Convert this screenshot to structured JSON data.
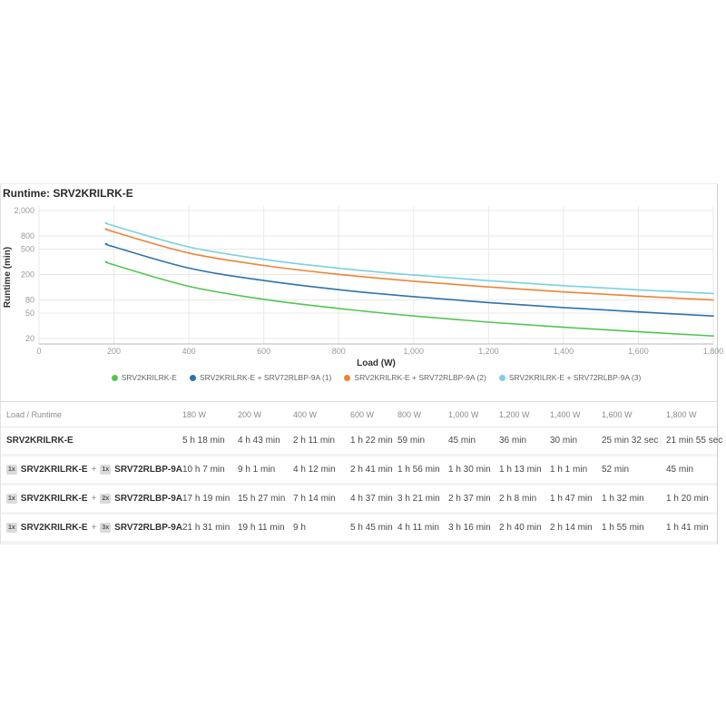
{
  "title": "Runtime: SRV2KRILRK-E",
  "chart_data": {
    "type": "line",
    "title": "Runtime: SRV2KRILRK-E",
    "xlabel": "Load (W)",
    "ylabel": "Runtime (min)",
    "x_ticks": [
      0,
      200,
      400,
      600,
      800,
      1000,
      1200,
      1400,
      1600,
      1800
    ],
    "y_ticks": [
      20,
      50,
      80,
      200,
      500,
      800,
      2000
    ],
    "x_range": [
      0,
      1800
    ],
    "y_scale": "log",
    "grid": true,
    "legend_position": "bottom",
    "x": [
      180,
      200,
      400,
      600,
      800,
      1000,
      1200,
      1400,
      1600,
      1800
    ],
    "series": [
      {
        "name": "SRV2KRILRK-E",
        "color": "#53c553",
        "runtime_min": [
          318,
          283,
          131,
          82,
          59,
          45,
          36,
          30,
          25.5,
          21.9
        ]
      },
      {
        "name": "SRV2KRILRK-E + SRV72RLBP-9A (1)",
        "color": "#2e72ad",
        "runtime_min": [
          607,
          541,
          252,
          161,
          116,
          90,
          73,
          61,
          52,
          45
        ]
      },
      {
        "name": "SRV2KRILRK-E + SRV72RLBP-9A (2)",
        "color": "#ee8435",
        "runtime_min": [
          1039,
          927,
          434,
          277,
          201,
          157,
          128,
          107,
          92,
          80
        ]
      },
      {
        "name": "SRV2KRILRK-E + SRV72RLBP-9A (3)",
        "color": "#7bd0e2",
        "runtime_min": [
          1291,
          1151,
          540,
          345,
          251,
          196,
          160,
          134,
          115,
          101
        ]
      }
    ]
  },
  "table": {
    "corner_header": "Load / Runtime",
    "load_headers": [
      "180 W",
      "200 W",
      "400 W",
      "600 W",
      "800 W",
      "1,000 W",
      "1,200 W",
      "1,400 W",
      "1,600 W",
      "1,800 W"
    ],
    "rows": [
      {
        "label_parts": [
          {
            "badge": null,
            "text": "SRV2KRILRK-E"
          }
        ],
        "cells": [
          "5 h 18 min",
          "4 h 43 min",
          "2 h 11 min",
          "1 h 22 min",
          "59 min",
          "45 min",
          "36 min",
          "30 min",
          "25 min 32 sec",
          "21 min 55 sec"
        ]
      },
      {
        "label_parts": [
          {
            "badge": "1x",
            "text": "SRV2KRILRK-E"
          },
          {
            "badge": "1x",
            "text": "SRV72RLBP-9A"
          }
        ],
        "cells": [
          "10 h 7 min",
          "9 h 1 min",
          "4 h 12 min",
          "2 h 41 min",
          "1 h 56 min",
          "1 h 30 min",
          "1 h 13 min",
          "1 h 1 min",
          "52 min",
          "45 min"
        ]
      },
      {
        "label_parts": [
          {
            "badge": "1x",
            "text": "SRV2KRILRK-E"
          },
          {
            "badge": "2x",
            "text": "SRV72RLBP-9A"
          }
        ],
        "cells": [
          "17 h 19 min",
          "15 h 27 min",
          "7 h 14 min",
          "4 h 37 min",
          "3 h 21 min",
          "2 h 37 min",
          "2 h 8 min",
          "1 h 47 min",
          "1 h 32 min",
          "1 h 20 min"
        ]
      },
      {
        "label_parts": [
          {
            "badge": "1x",
            "text": "SRV2KRILRK-E"
          },
          {
            "badge": "3x",
            "text": "SRV72RLBP-9A"
          }
        ],
        "cells": [
          "21 h 31 min",
          "19 h 11 min",
          "9 h",
          "5 h 45 min",
          "4 h 11 min",
          "3 h 16 min",
          "2 h 40 min",
          "2 h 14 min",
          "1 h 55 min",
          "1 h 41 min"
        ]
      }
    ]
  },
  "colors": {
    "grid": "#e9e9e9",
    "axis": "#b3b3b3",
    "tick_text": "#999999",
    "axis_title_text": "#333333",
    "legend_text": "#666666"
  }
}
